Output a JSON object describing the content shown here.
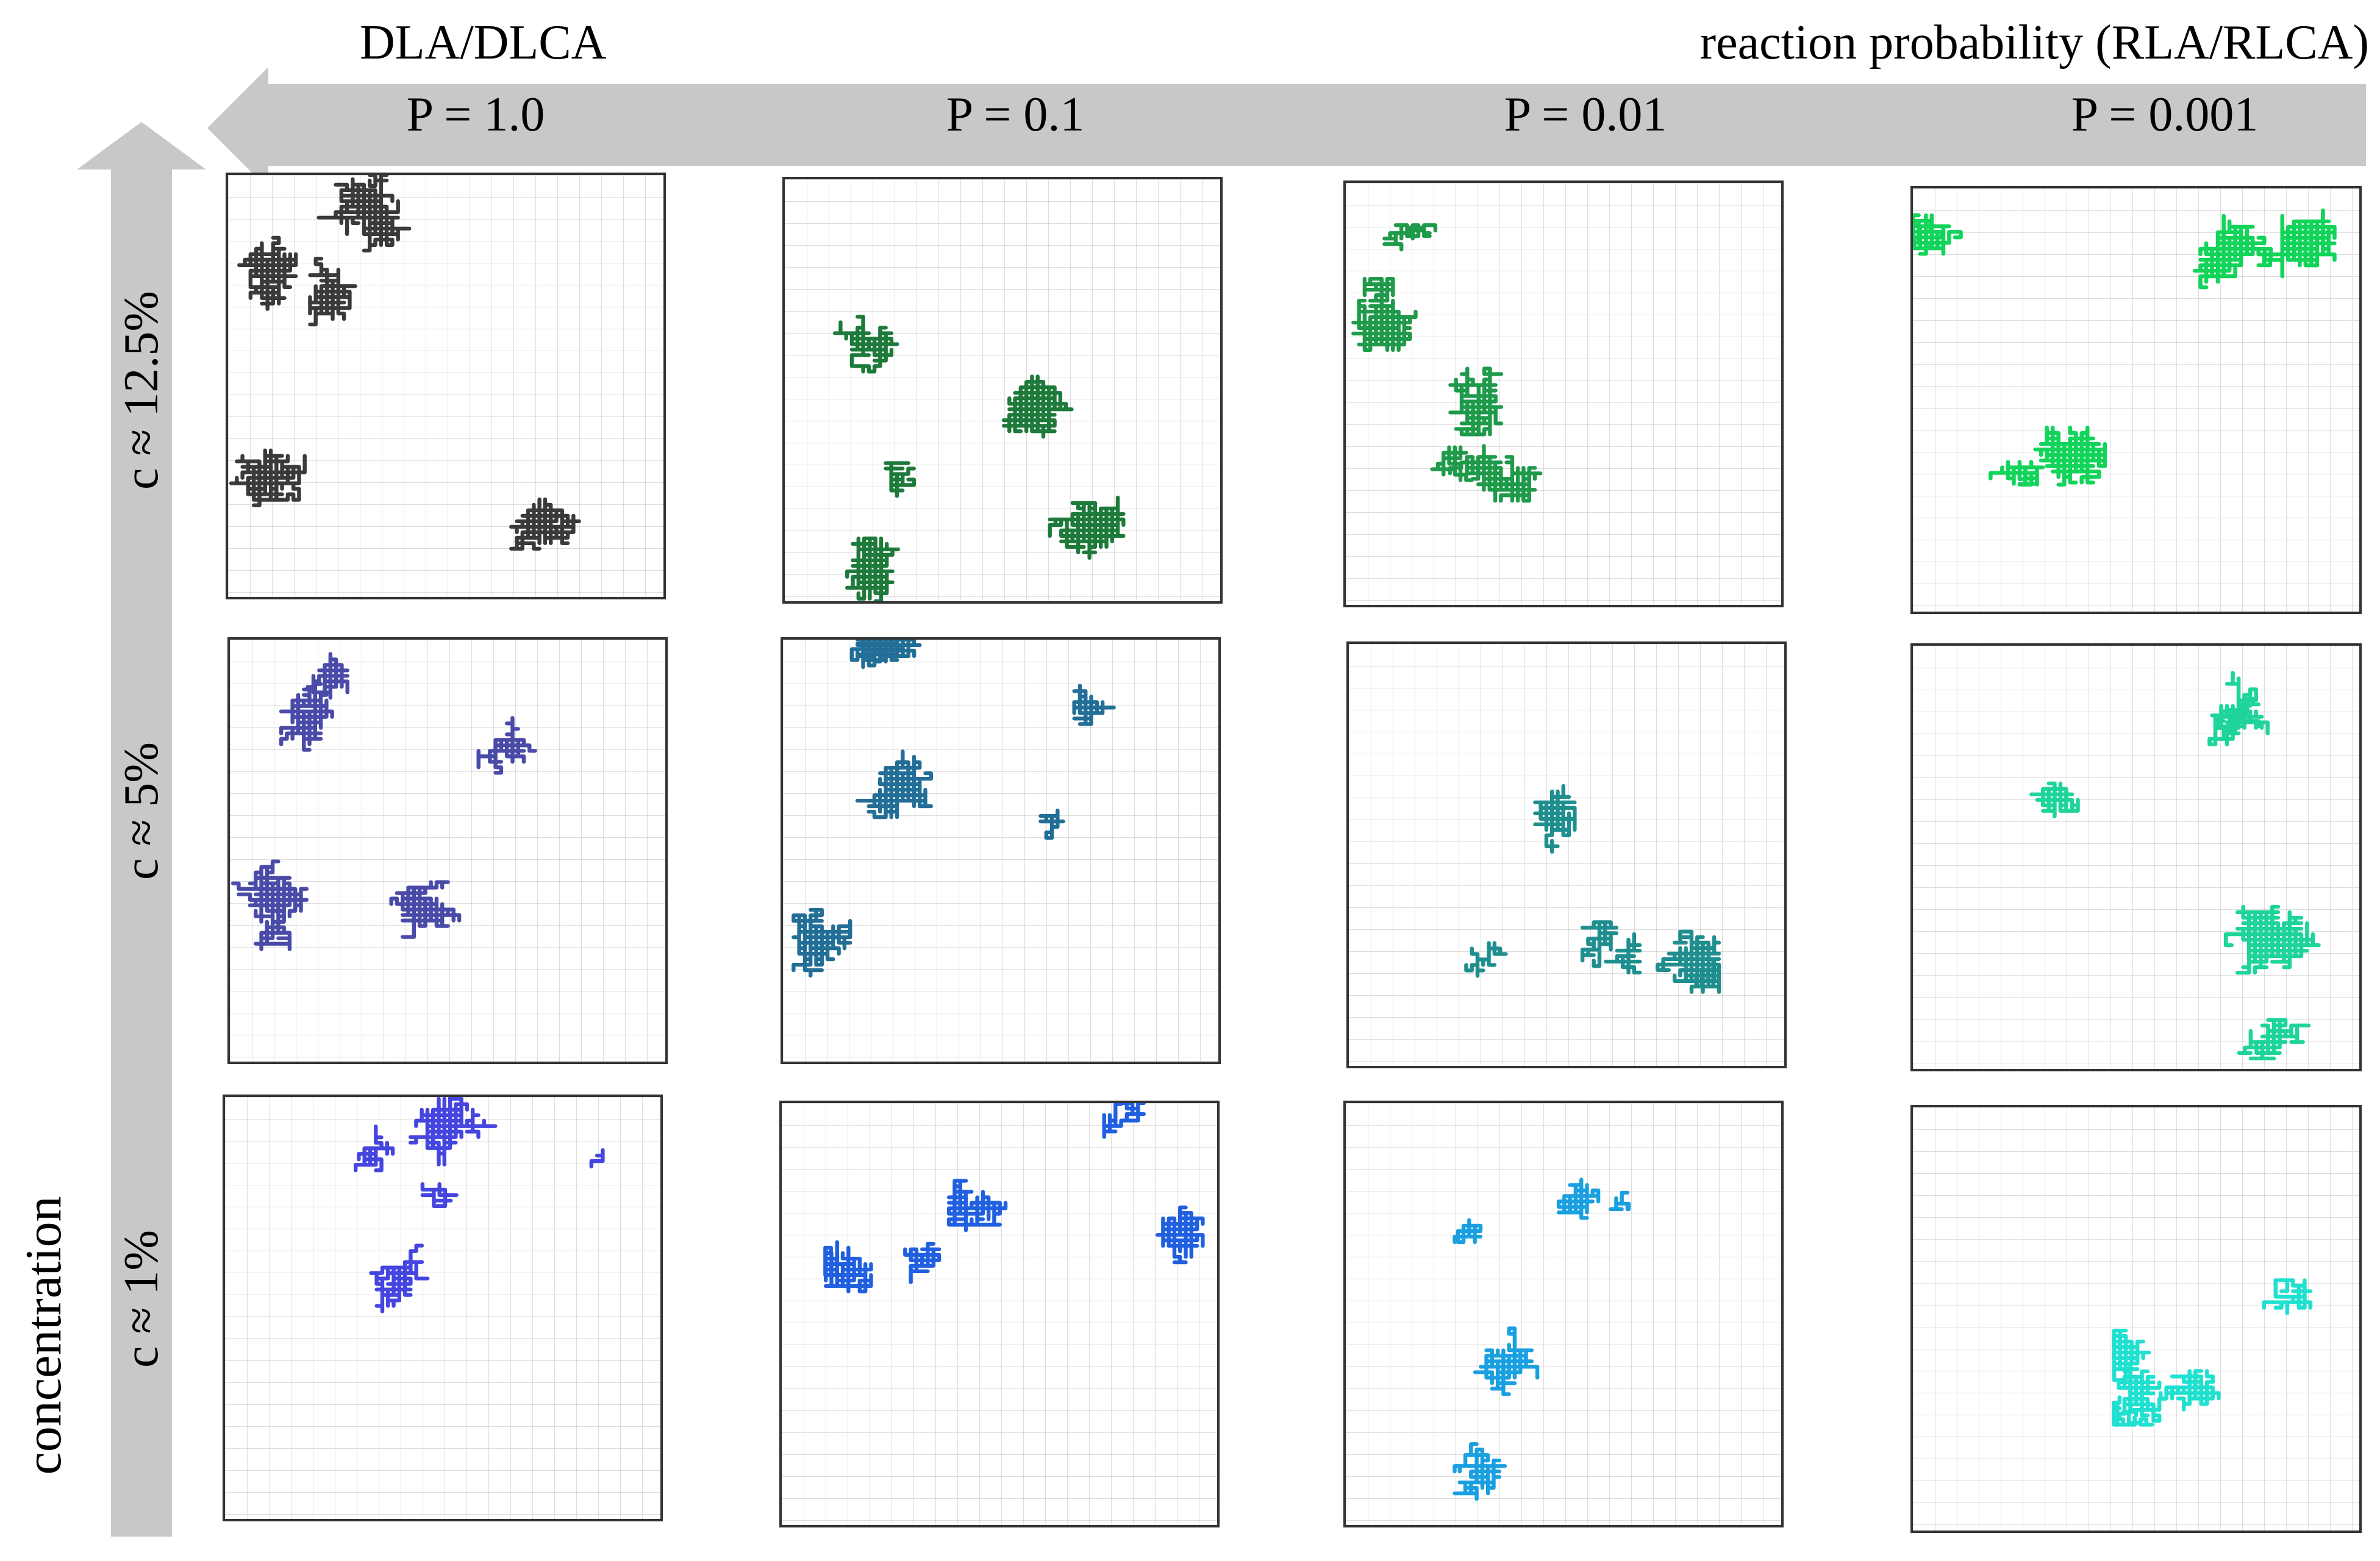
{
  "header": {
    "left_label": "DLA/DLCA",
    "right_label": "reaction probability (RLA/RLCA)"
  },
  "columns": [
    {
      "label": "P = 1.0"
    },
    {
      "label": "P = 0.1"
    },
    {
      "label": "P = 0.01"
    },
    {
      "label": "P = 0.001"
    }
  ],
  "rows": [
    {
      "label": "c ≈ 12.5%"
    },
    {
      "label": "c ≈ 5%"
    },
    {
      "label": "c ≈ 1%"
    }
  ],
  "axis_label": "concentration",
  "colors": {
    "arrow": "#c8c8c8",
    "panel_border": "#333333",
    "clusters": [
      [
        "#3a3a3a",
        "#1e7a3a",
        "#1f9a4a",
        "#12d45a"
      ],
      [
        "#4a4aa8",
        "#226e96",
        "#1f8e8e",
        "#1fd49a"
      ],
      [
        "#4545e0",
        "#2060e0",
        "#1aa0e0",
        "#20e0d0"
      ]
    ]
  }
}
